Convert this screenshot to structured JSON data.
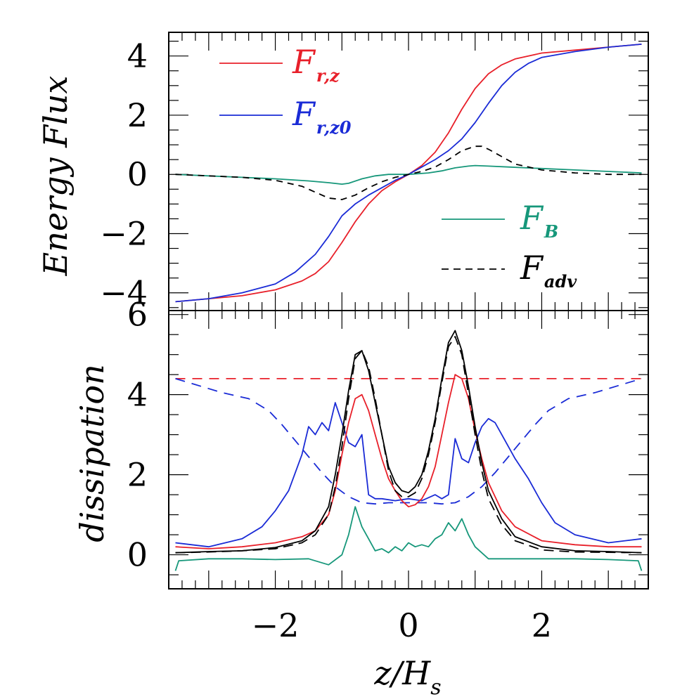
{
  "chart_data": [
    {
      "type": "line",
      "panel": "top",
      "xlabel": "",
      "ylabel": "Energy Flux",
      "xlim": [
        -3.6,
        3.6
      ],
      "ylim": [
        -4.6,
        4.8
      ],
      "x_ticks": [
        -2,
        0,
        2
      ],
      "y_tick_labels": [
        "−4",
        "−2",
        "0",
        "2",
        "4"
      ],
      "y_ticks": [
        -4,
        -2,
        0,
        2,
        4
      ],
      "legend": [
        {
          "main": "F",
          "sub": "r,z",
          "color": "#e8202a",
          "style": "solid"
        },
        {
          "main": "F",
          "sub": "r,z0",
          "color": "#1a2bd6",
          "style": "solid"
        },
        {
          "main": "F",
          "sub": "B",
          "color": "#16977a",
          "style": "solid"
        },
        {
          "main": "F",
          "sub": "adv",
          "color": "#000000",
          "style": "dashed"
        }
      ],
      "series": [
        {
          "key": "Frz",
          "color": "#e8202a",
          "dash": "",
          "x": [
            -3.5,
            -3.0,
            -2.5,
            -2.0,
            -1.6,
            -1.4,
            -1.2,
            -1.0,
            -0.8,
            -0.6,
            -0.4,
            -0.2,
            0.0,
            0.2,
            0.4,
            0.6,
            0.8,
            1.0,
            1.2,
            1.4,
            1.6,
            2.0,
            2.5,
            3.0,
            3.5
          ],
          "values": [
            -4.3,
            -4.2,
            -4.1,
            -3.9,
            -3.6,
            -3.35,
            -2.95,
            -2.3,
            -1.6,
            -1.0,
            -0.55,
            -0.25,
            0.0,
            0.3,
            0.75,
            1.4,
            2.2,
            2.9,
            3.4,
            3.7,
            3.9,
            4.1,
            4.2,
            4.3,
            4.4
          ]
        },
        {
          "key": "Frz0",
          "color": "#1a2bd6",
          "dash": "",
          "x": [
            -3.5,
            -3.0,
            -2.5,
            -2.0,
            -1.7,
            -1.4,
            -1.2,
            -1.0,
            -0.8,
            -0.6,
            -0.4,
            -0.2,
            0.0,
            0.2,
            0.4,
            0.6,
            0.8,
            1.0,
            1.2,
            1.4,
            1.6,
            1.8,
            2.0,
            2.5,
            3.0,
            3.5
          ],
          "values": [
            -4.3,
            -4.2,
            -4.0,
            -3.7,
            -3.3,
            -2.7,
            -2.1,
            -1.4,
            -1.0,
            -0.7,
            -0.45,
            -0.2,
            0.0,
            0.25,
            0.5,
            0.8,
            1.2,
            1.75,
            2.4,
            3.0,
            3.45,
            3.75,
            3.95,
            4.15,
            4.3,
            4.4
          ]
        },
        {
          "key": "FB",
          "color": "#16977a",
          "dash": "",
          "x": [
            -3.5,
            -3.0,
            -2.5,
            -2.0,
            -1.5,
            -1.2,
            -1.0,
            -0.9,
            -0.7,
            -0.5,
            -0.3,
            0.0,
            0.3,
            0.5,
            0.7,
            0.9,
            1.0,
            1.2,
            1.5,
            2.0,
            2.5,
            3.0,
            3.5
          ],
          "values": [
            0.0,
            -0.05,
            -0.1,
            -0.15,
            -0.22,
            -0.28,
            -0.33,
            -0.3,
            -0.15,
            -0.05,
            0.0,
            0.0,
            0.05,
            0.12,
            0.22,
            0.28,
            0.3,
            0.28,
            0.25,
            0.2,
            0.15,
            0.1,
            0.05
          ]
        },
        {
          "key": "Fadv",
          "color": "#000000",
          "dash": "9,7",
          "x": [
            -3.5,
            -3.0,
            -2.5,
            -2.0,
            -1.6,
            -1.4,
            -1.2,
            -1.0,
            -0.8,
            -0.6,
            -0.4,
            -0.2,
            0.0,
            0.2,
            0.4,
            0.6,
            0.8,
            1.0,
            1.1,
            1.2,
            1.4,
            1.6,
            2.0,
            2.5,
            3.0,
            3.5
          ],
          "values": [
            0.0,
            -0.05,
            -0.1,
            -0.2,
            -0.4,
            -0.6,
            -0.8,
            -0.85,
            -0.7,
            -0.45,
            -0.25,
            -0.1,
            0.0,
            0.1,
            0.25,
            0.5,
            0.8,
            0.95,
            0.95,
            0.85,
            0.6,
            0.35,
            0.15,
            0.05,
            0.0,
            0.0
          ]
        }
      ]
    },
    {
      "type": "line",
      "panel": "bottom",
      "xlabel": "z/H_s",
      "xlabel_main": "z/H",
      "xlabel_sub": "s",
      "ylabel": "dissipation",
      "xlim": [
        -3.6,
        3.6
      ],
      "ylim": [
        -0.85,
        6.1
      ],
      "x_ticks": [
        -2,
        0,
        2
      ],
      "x_tick_labels": [
        "−2",
        "0",
        "2"
      ],
      "y_ticks": [
        0,
        2,
        4,
        6
      ],
      "y_tick_labels": [
        "0",
        "2",
        "4",
        "6"
      ],
      "series": [
        {
          "key": "flat",
          "color": "#e8202a",
          "dash": "14,10",
          "x": [
            -3.5,
            3.5
          ],
          "values": [
            4.4,
            4.4
          ]
        },
        {
          "key": "blue-dashed",
          "color": "#1a2bd6",
          "dash": "14,10",
          "x": [
            -3.5,
            -3.2,
            -2.8,
            -2.4,
            -2.1,
            -1.9,
            -1.7,
            -1.5,
            -1.3,
            -1.1,
            -0.9,
            -0.7,
            -0.5,
            -0.3,
            0.0,
            0.3,
            0.5,
            0.7,
            0.9,
            1.1,
            1.3,
            1.5,
            1.7,
            1.9,
            2.1,
            2.4,
            2.8,
            3.2,
            3.5
          ],
          "values": [
            4.4,
            4.25,
            4.05,
            3.9,
            3.6,
            3.25,
            2.85,
            2.45,
            2.05,
            1.7,
            1.45,
            1.3,
            1.27,
            1.3,
            1.3,
            1.3,
            1.27,
            1.3,
            1.45,
            1.7,
            2.05,
            2.45,
            2.85,
            3.25,
            3.6,
            3.9,
            4.05,
            4.25,
            4.4
          ]
        },
        {
          "key": "blue",
          "color": "#1a2bd6",
          "dash": "",
          "x": [
            -3.5,
            -3.0,
            -2.5,
            -2.2,
            -2.0,
            -1.8,
            -1.6,
            -1.5,
            -1.4,
            -1.3,
            -1.2,
            -1.1,
            -1.0,
            -0.9,
            -0.8,
            -0.7,
            -0.6,
            -0.5,
            -0.4,
            -0.2,
            0.0,
            0.2,
            0.4,
            0.5,
            0.6,
            0.7,
            0.8,
            0.9,
            1.0,
            1.1,
            1.2,
            1.3,
            1.4,
            1.5,
            1.6,
            1.8,
            2.0,
            2.2,
            2.5,
            3.0,
            3.5
          ],
          "values": [
            0.3,
            0.2,
            0.4,
            0.7,
            1.1,
            1.6,
            2.5,
            3.2,
            3.0,
            3.3,
            3.1,
            3.8,
            3.3,
            2.8,
            2.7,
            3.0,
            1.5,
            1.4,
            1.4,
            1.35,
            1.4,
            1.35,
            1.5,
            1.4,
            1.5,
            2.9,
            2.4,
            2.3,
            2.8,
            3.2,
            3.4,
            3.3,
            3.0,
            2.7,
            2.4,
            1.9,
            1.3,
            0.8,
            0.5,
            0.3,
            0.4
          ]
        },
        {
          "key": "red",
          "color": "#e8202a",
          "dash": "",
          "x": [
            -3.5,
            -3.0,
            -2.5,
            -2.0,
            -1.6,
            -1.4,
            -1.2,
            -1.1,
            -1.0,
            -0.9,
            -0.8,
            -0.7,
            -0.6,
            -0.5,
            -0.4,
            -0.3,
            -0.2,
            -0.1,
            0.0,
            0.1,
            0.2,
            0.3,
            0.4,
            0.5,
            0.6,
            0.7,
            0.8,
            0.9,
            1.0,
            1.1,
            1.2,
            1.4,
            1.6,
            2.0,
            2.5,
            3.0,
            3.5
          ],
          "values": [
            0.2,
            0.15,
            0.2,
            0.3,
            0.45,
            0.6,
            1.0,
            1.6,
            2.5,
            3.3,
            3.9,
            4.0,
            3.6,
            3.0,
            2.4,
            1.9,
            1.6,
            1.35,
            1.2,
            1.25,
            1.4,
            1.7,
            2.2,
            3.0,
            3.8,
            4.5,
            4.4,
            3.9,
            3.1,
            2.4,
            1.8,
            1.1,
            0.7,
            0.35,
            0.25,
            0.2,
            0.2
          ]
        },
        {
          "key": "black",
          "color": "#000000",
          "dash": "",
          "x": [
            -3.5,
            -3.0,
            -2.5,
            -2.0,
            -1.6,
            -1.4,
            -1.2,
            -1.1,
            -1.0,
            -0.9,
            -0.8,
            -0.7,
            -0.6,
            -0.5,
            -0.4,
            -0.3,
            -0.2,
            -0.1,
            0.0,
            0.1,
            0.2,
            0.3,
            0.4,
            0.5,
            0.6,
            0.7,
            0.8,
            0.9,
            1.0,
            1.1,
            1.2,
            1.4,
            1.6,
            2.0,
            2.5,
            3.0,
            3.5
          ],
          "values": [
            0.05,
            0.08,
            0.1,
            0.18,
            0.35,
            0.6,
            1.2,
            2.0,
            3.0,
            4.1,
            5.0,
            5.1,
            4.6,
            3.8,
            3.0,
            2.2,
            1.8,
            1.6,
            1.55,
            1.7,
            2.0,
            2.6,
            3.4,
            4.4,
            5.3,
            5.6,
            5.1,
            4.2,
            3.2,
            2.3,
            1.6,
            0.9,
            0.45,
            0.2,
            0.1,
            0.08,
            0.05
          ]
        },
        {
          "key": "black-dashed",
          "color": "#000000",
          "dash": "14,8",
          "x": [
            -3.5,
            -3.0,
            -2.5,
            -2.0,
            -1.6,
            -1.4,
            -1.2,
            -1.1,
            -1.0,
            -0.9,
            -0.8,
            -0.7,
            -0.6,
            -0.5,
            -0.4,
            -0.3,
            -0.2,
            -0.1,
            0.0,
            0.1,
            0.2,
            0.3,
            0.4,
            0.5,
            0.6,
            0.7,
            0.8,
            0.9,
            1.0,
            1.1,
            1.2,
            1.4,
            1.6,
            2.0,
            2.5,
            3.0,
            3.5
          ],
          "values": [
            0.05,
            0.07,
            0.1,
            0.15,
            0.3,
            0.5,
            1.0,
            1.7,
            2.7,
            3.9,
            4.9,
            5.1,
            4.7,
            3.9,
            3.0,
            2.1,
            1.6,
            1.45,
            1.45,
            1.55,
            1.9,
            2.5,
            3.3,
            4.3,
            5.2,
            5.45,
            5.0,
            4.0,
            3.0,
            2.1,
            1.4,
            0.75,
            0.35,
            0.12,
            0.07,
            0.06,
            0.05
          ]
        },
        {
          "key": "teal",
          "color": "#16977a",
          "dash": "",
          "x": [
            -3.5,
            -3.45,
            -3.0,
            -2.5,
            -2.0,
            -1.5,
            -1.2,
            -1.0,
            -0.9,
            -0.8,
            -0.7,
            -0.6,
            -0.5,
            -0.4,
            -0.3,
            -0.2,
            -0.1,
            0.0,
            0.1,
            0.2,
            0.3,
            0.4,
            0.5,
            0.6,
            0.7,
            0.8,
            0.9,
            1.0,
            1.2,
            1.5,
            2.0,
            2.5,
            3.0,
            3.45,
            3.5
          ],
          "values": [
            -0.4,
            -0.15,
            -0.1,
            -0.1,
            -0.12,
            -0.1,
            -0.25,
            0.0,
            0.5,
            1.2,
            0.7,
            0.4,
            0.1,
            0.15,
            0.05,
            0.2,
            0.1,
            0.3,
            0.2,
            0.25,
            0.2,
            0.4,
            0.5,
            0.8,
            0.6,
            0.9,
            0.5,
            0.2,
            -0.1,
            -0.1,
            -0.1,
            -0.1,
            -0.12,
            -0.15,
            -0.4
          ]
        }
      ]
    }
  ]
}
